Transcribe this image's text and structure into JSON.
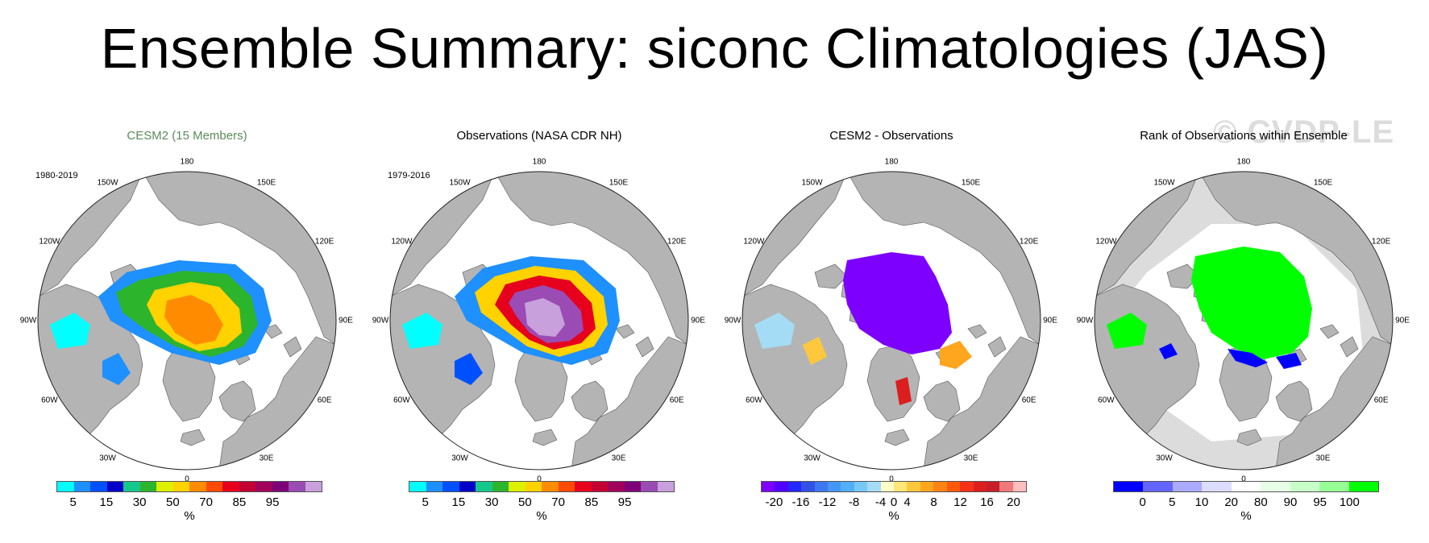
{
  "title": "Ensemble Summary: siconc Climatologies (JAS)",
  "watermark": "© CVDP-LE",
  "lon_labels": [
    "180",
    "150E",
    "120E",
    "90E",
    "60E",
    "30E",
    "0",
    "30W",
    "60W",
    "90W",
    "120W",
    "150W"
  ],
  "colors": {
    "land": "#b4b4b4",
    "ocean": "#ffffff",
    "conc_scale": [
      "#00ffff",
      "#1e90ff",
      "#0050ff",
      "#0000c8",
      "#14c88c",
      "#2db42d",
      "#dcf000",
      "#ffd200",
      "#ff8c00",
      "#ff4b00",
      "#e6001e",
      "#c30032",
      "#a0005a",
      "#7d0078",
      "#9b4bb4",
      "#c8a0dc"
    ],
    "diff_scale": [
      "#7d00ff",
      "#5000ff",
      "#2328ff",
      "#3250e6",
      "#3c78f0",
      "#4696f5",
      "#50aff5",
      "#78c8f5",
      "#a5dcf5",
      "#ffffc8",
      "#ffe678",
      "#ffc83c",
      "#ffa51e",
      "#ff8214",
      "#ff5a0a",
      "#f53219",
      "#dc1e1e",
      "#c81e28",
      "#f07878",
      "#ffbebe"
    ],
    "rank_scale": [
      "#0000ff",
      "#6464ff",
      "#aaaaff",
      "#dcdcff",
      "#ffffff",
      "#e6ffe6",
      "#c8ffc8",
      "#96ff96",
      "#00ff00"
    ]
  },
  "panels": [
    {
      "title": "CESM2 (15 Members)",
      "title_color": "#5a8a5a",
      "period": "1980-2019",
      "colorbar": "conc",
      "cb_labels": [
        "5",
        "15",
        "30",
        "50",
        "70",
        "85",
        "95"
      ],
      "units": "%"
    },
    {
      "title": "Observations (NASA CDR NH)",
      "title_color": "#000000",
      "period": "1979-2016",
      "colorbar": "conc",
      "cb_labels": [
        "5",
        "15",
        "30",
        "50",
        "70",
        "85",
        "95"
      ],
      "units": "%"
    },
    {
      "title": "CESM2 - Observations",
      "title_color": "#000000",
      "period": "",
      "colorbar": "diff",
      "cb_labels": [
        "-20",
        "-16",
        "-12",
        "-8",
        "-4",
        "0",
        "4",
        "8",
        "12",
        "16",
        "20"
      ],
      "units": "%"
    },
    {
      "title": "Rank of Observations within Ensemble",
      "title_color": "#000000",
      "period": "",
      "colorbar": "rank",
      "cb_labels": [
        "0",
        "5",
        "10",
        "20",
        "80",
        "90",
        "95",
        "100"
      ],
      "units": "%"
    }
  ]
}
